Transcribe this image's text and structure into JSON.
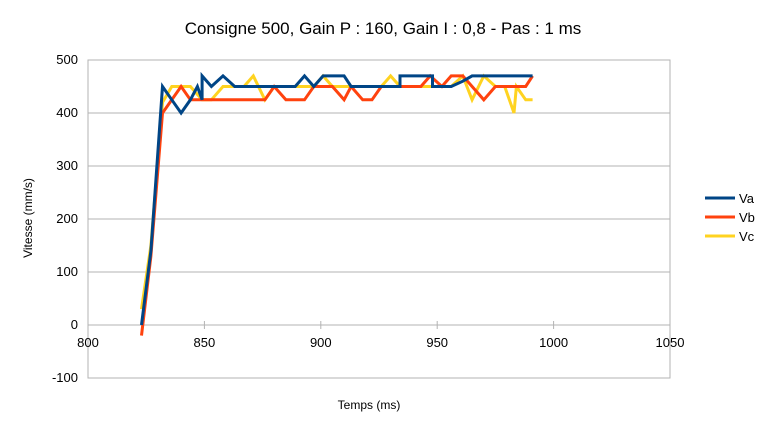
{
  "chart_data": {
    "type": "line",
    "title": "Consigne 500, Gain P : 160, Gain I : 0,8 - Pas : 1 ms",
    "xlabel": "Temps (ms)",
    "ylabel": "Vitesse (mm/s)",
    "xlim": [
      800,
      1050
    ],
    "ylim": [
      -100,
      500
    ],
    "xticks": [
      800,
      850,
      900,
      950,
      1000,
      1050
    ],
    "xtick_labels": [
      "800",
      "850",
      "900",
      "950",
      "1000",
      "1050"
    ],
    "yticks": [
      -100,
      0,
      100,
      200,
      300,
      400,
      500
    ],
    "ytick_labels": [
      "-100",
      "0",
      "100",
      "200",
      "300",
      "400",
      "500"
    ],
    "grid": "horizontal",
    "legend": "right",
    "series": [
      {
        "name": "Va",
        "color": "#004586",
        "x": [
          823,
          827,
          832,
          836,
          840,
          844,
          847,
          849,
          849,
          853,
          858,
          863,
          867,
          871,
          876,
          880,
          885,
          889,
          893,
          897,
          901,
          905,
          910,
          913,
          918,
          922,
          926,
          930,
          934,
          934,
          938,
          943,
          947,
          948,
          948,
          952,
          956,
          961,
          965,
          966,
          970,
          975,
          979,
          983,
          988,
          991
        ],
        "y": [
          0,
          140,
          450,
          425,
          400,
          425,
          450,
          425,
          470,
          450,
          470,
          450,
          450,
          450,
          450,
          450,
          450,
          450,
          470,
          450,
          470,
          470,
          470,
          450,
          450,
          450,
          450,
          450,
          450,
          470,
          470,
          470,
          470,
          470,
          450,
          450,
          450,
          460,
          470,
          470,
          470,
          470,
          470,
          470,
          470,
          470
        ]
      },
      {
        "name": "Vb",
        "color": "#ff420e",
        "x": [
          823,
          827,
          832,
          836,
          840,
          844,
          849,
          853,
          858,
          863,
          867,
          871,
          876,
          880,
          885,
          889,
          893,
          897,
          901,
          905,
          910,
          913,
          918,
          922,
          926,
          930,
          934,
          938,
          943,
          947,
          952,
          956,
          961,
          965,
          970,
          975,
          979,
          983,
          988,
          991
        ],
        "y": [
          -20,
          130,
          400,
          425,
          450,
          425,
          425,
          425,
          425,
          425,
          425,
          425,
          425,
          450,
          425,
          425,
          425,
          450,
          450,
          450,
          425,
          450,
          425,
          425,
          450,
          450,
          450,
          450,
          450,
          470,
          450,
          470,
          470,
          450,
          425,
          450,
          450,
          450,
          450,
          470
        ]
      },
      {
        "name": "Vc",
        "color": "#ffd320",
        "x": [
          823,
          827,
          832,
          836,
          840,
          844,
          849,
          853,
          858,
          863,
          867,
          871,
          876,
          880,
          885,
          889,
          893,
          897,
          901,
          905,
          910,
          913,
          918,
          922,
          926,
          930,
          934,
          938,
          943,
          947,
          952,
          956,
          961,
          965,
          970,
          975,
          979,
          983,
          984,
          988,
          991
        ],
        "y": [
          30,
          150,
          420,
          450,
          450,
          450,
          425,
          425,
          450,
          450,
          450,
          470,
          425,
          450,
          450,
          450,
          450,
          450,
          470,
          450,
          450,
          450,
          450,
          450,
          450,
          470,
          450,
          450,
          450,
          450,
          450,
          450,
          470,
          425,
          470,
          450,
          450,
          400,
          450,
          425,
          425
        ]
      }
    ]
  }
}
